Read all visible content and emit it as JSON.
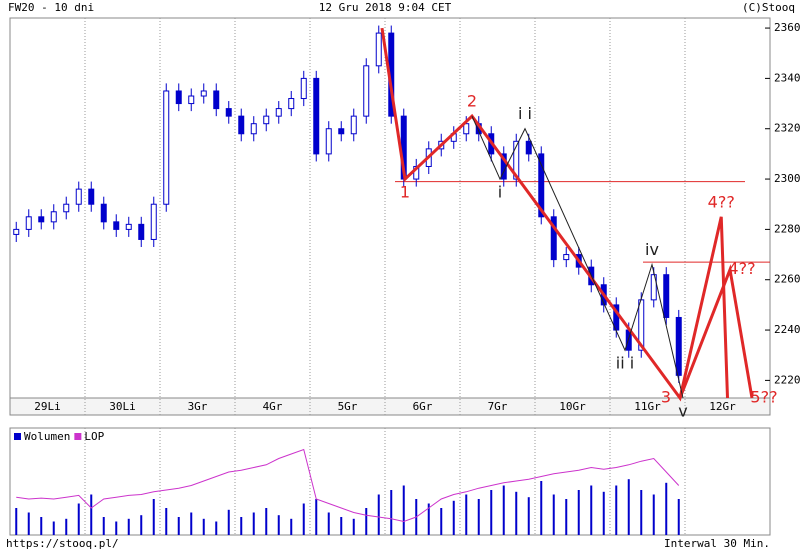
{
  "chart_data": {
    "type": "candlestick",
    "title": "FW20 - 10 dni",
    "subtitle": "12 Gru 2018 9:04 CET",
    "credit": "(C)Stooq",
    "url": "https://stooq.pl/",
    "interval": "Interwal 30 Min.",
    "color": "#0000cc",
    "days": [
      "29Li",
      "30Li",
      "3Gr",
      "4Gr",
      "5Gr",
      "6Gr",
      "7Gr",
      "10Gr",
      "11Gr",
      "12Gr"
    ],
    "candles_per_day": 6,
    "open": [
      2278,
      2280,
      2285,
      2283,
      2287,
      2290,
      2296,
      2290,
      2283,
      2280,
      2282,
      2276,
      2290,
      2335,
      2330,
      2333,
      2335,
      2328,
      2325,
      2318,
      2322,
      2325,
      2328,
      2332,
      2340,
      2310,
      2320,
      2318,
      2325,
      2345,
      2358,
      2325,
      2300,
      2305,
      2312,
      2315,
      2318,
      2322,
      2318,
      2310,
      2300,
      2315,
      2310,
      2285,
      2268,
      2270,
      2265,
      2258,
      2250,
      2240,
      2232,
      2252,
      2262,
      2245
    ],
    "high": [
      2283,
      2288,
      2288,
      2290,
      2293,
      2299,
      2299,
      2293,
      2286,
      2285,
      2285,
      2293,
      2338,
      2338,
      2336,
      2338,
      2338,
      2331,
      2328,
      2325,
      2328,
      2331,
      2335,
      2343,
      2343,
      2323,
      2323,
      2328,
      2348,
      2361,
      2361,
      2328,
      2308,
      2315,
      2318,
      2321,
      2325,
      2325,
      2321,
      2313,
      2318,
      2318,
      2313,
      2288,
      2273,
      2273,
      2268,
      2261,
      2253,
      2243,
      2255,
      2265,
      2265,
      2248
    ],
    "low": [
      2275,
      2277,
      2280,
      2280,
      2284,
      2287,
      2287,
      2280,
      2277,
      2277,
      2273,
      2273,
      2287,
      2327,
      2327,
      2330,
      2325,
      2322,
      2315,
      2315,
      2319,
      2322,
      2325,
      2329,
      2307,
      2307,
      2315,
      2315,
      2322,
      2342,
      2322,
      2297,
      2297,
      2302,
      2309,
      2312,
      2315,
      2315,
      2307,
      2297,
      2297,
      2307,
      2282,
      2265,
      2265,
      2262,
      2255,
      2247,
      2237,
      2229,
      2229,
      2249,
      2242,
      2219
    ],
    "close": [
      2280,
      2285,
      2283,
      2287,
      2290,
      2296,
      2290,
      2283,
      2280,
      2282,
      2276,
      2290,
      2335,
      2330,
      2333,
      2335,
      2328,
      2325,
      2318,
      2322,
      2325,
      2328,
      2332,
      2340,
      2310,
      2320,
      2318,
      2325,
      2345,
      2358,
      2325,
      2300,
      2305,
      2312,
      2315,
      2318,
      2322,
      2318,
      2310,
      2300,
      2315,
      2310,
      2285,
      2268,
      2270,
      2265,
      2258,
      2250,
      2240,
      2232,
      2252,
      2262,
      2245,
      2222
    ],
    "ylim": [
      2213,
      2364
    ],
    "yticks": [
      2220,
      2240,
      2260,
      2280,
      2300,
      2320,
      2340,
      2360
    ],
    "waves": [
      {
        "color": "#e02828",
        "points": [
          {
            "x": 29.26,
            "y": 2360
          },
          {
            "x": 31.1,
            "y": 2300,
            "label": "1",
            "side": "below"
          },
          {
            "x": 36.46,
            "y": 2325,
            "label": "2",
            "side": "above"
          },
          {
            "x": 53.1,
            "y": 2213,
            "label": "3",
            "side": "left"
          },
          {
            "x": 56.4,
            "y": 2285,
            "label": "4??",
            "side": "above"
          },
          {
            "x": 56.9,
            "y": 2213
          }
        ]
      },
      {
        "color": "#e02828",
        "points": [
          {
            "x": 53.1,
            "y": 2213
          },
          {
            "x": 57.1,
            "y": 2264,
            "label": "4??",
            "side": "right"
          },
          {
            "x": 58.86,
            "y": 2213,
            "label": "5??",
            "side": "right"
          }
        ]
      },
      {
        "color": "#202020",
        "points": [
          {
            "x": 36.46,
            "y": 2325
          },
          {
            "x": 38.7,
            "y": 2300,
            "label": "i",
            "side": "below"
          },
          {
            "x": 40.7,
            "y": 2320,
            "label": "i i",
            "side": "above"
          },
          {
            "x": 48.7,
            "y": 2232,
            "label": "ii i",
            "side": "below"
          },
          {
            "x": 50.86,
            "y": 2266,
            "label": "iv",
            "side": "above"
          },
          {
            "x": 53.34,
            "y": 2213,
            "label": "v",
            "side": "below"
          }
        ]
      }
    ],
    "levels": [
      {
        "y": 2299,
        "x": [
          30.3,
          58.3
        ],
        "color": "#e02828"
      },
      {
        "y": 2267,
        "x": [
          50.14,
          60.3
        ],
        "color": "#e02828"
      }
    ],
    "lower_panel": {
      "ylim": [
        0,
        100
      ],
      "series": [
        {
          "name": "Wolumen",
          "type": "bar",
          "color": "#0000cc",
          "values": [
            30,
            25,
            20,
            15,
            18,
            35,
            45,
            20,
            15,
            18,
            22,
            40,
            30,
            20,
            25,
            18,
            15,
            28,
            20,
            25,
            30,
            22,
            18,
            35,
            40,
            25,
            20,
            18,
            30,
            45,
            50,
            55,
            40,
            35,
            30,
            38,
            45,
            40,
            50,
            55,
            48,
            42,
            60,
            45,
            40,
            50,
            55,
            48,
            55,
            62,
            50,
            45,
            58,
            40
          ]
        },
        {
          "name": "LOP",
          "type": "line",
          "color": "#cc33cc",
          "values": [
            42,
            40,
            41,
            40,
            42,
            44,
            30,
            40,
            42,
            44,
            45,
            48,
            50,
            52,
            55,
            60,
            65,
            70,
            72,
            75,
            78,
            85,
            90,
            95,
            40,
            35,
            30,
            25,
            22,
            20,
            18,
            15,
            20,
            30,
            40,
            45,
            48,
            52,
            55,
            58,
            60,
            62,
            65,
            68,
            70,
            72,
            75,
            73,
            75,
            78,
            82,
            85,
            70,
            55
          ]
        }
      ]
    }
  }
}
